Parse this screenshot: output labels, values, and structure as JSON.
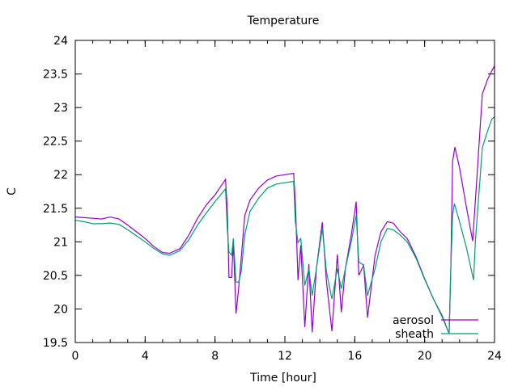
{
  "chart_data": {
    "type": "line",
    "title": "Temperature",
    "xlabel": "Time [hour]",
    "ylabel": "C",
    "xlim": [
      0,
      24
    ],
    "ylim": [
      19.5,
      24
    ],
    "xticks": [
      0,
      4,
      8,
      12,
      16,
      20,
      24
    ],
    "xtick_labels": [
      "0",
      "4",
      "8",
      "12",
      "16",
      "20",
      "24"
    ],
    "yticks": [
      19.5,
      20,
      20.5,
      21,
      21.5,
      22,
      22.5,
      23,
      23.5,
      24
    ],
    "ytick_labels": [
      "19.5",
      "20",
      "20.5",
      "21",
      "21.5",
      "22",
      "22.5",
      "23",
      "23.5",
      "24"
    ],
    "legend_position": "bottom-right",
    "series": [
      {
        "name": "aerosol",
        "color": "#9400d3",
        "points": [
          [
            0,
            21.37
          ],
          [
            0.5,
            21.36
          ],
          [
            1,
            21.35
          ],
          [
            1.5,
            21.34
          ],
          [
            2,
            21.37
          ],
          [
            2.5,
            21.34
          ],
          [
            3,
            21.25
          ],
          [
            3.5,
            21.15
          ],
          [
            4,
            21.05
          ],
          [
            4.5,
            20.93
          ],
          [
            5,
            20.84
          ],
          [
            5.4,
            20.83
          ],
          [
            6,
            20.9
          ],
          [
            6.5,
            21.1
          ],
          [
            7,
            21.35
          ],
          [
            7.5,
            21.55
          ],
          [
            8,
            21.7
          ],
          [
            8.6,
            21.93
          ],
          [
            8.7,
            21.5
          ],
          [
            8.8,
            20.47
          ],
          [
            8.95,
            20.47
          ],
          [
            9.05,
            21.0
          ],
          [
            9.2,
            19.93
          ],
          [
            9.35,
            20.3
          ],
          [
            9.5,
            20.75
          ],
          [
            9.7,
            21.39
          ],
          [
            10,
            21.62
          ],
          [
            10.5,
            21.8
          ],
          [
            11,
            21.92
          ],
          [
            11.5,
            21.98
          ],
          [
            12,
            22.0
          ],
          [
            12.5,
            22.02
          ],
          [
            12.6,
            21.6
          ],
          [
            12.75,
            20.43
          ],
          [
            12.91,
            20.95
          ],
          [
            13.14,
            19.73
          ],
          [
            13.37,
            20.67
          ],
          [
            13.56,
            19.65
          ],
          [
            13.8,
            20.6
          ],
          [
            14.14,
            21.29
          ],
          [
            14.38,
            20.4
          ],
          [
            14.69,
            19.67
          ],
          [
            15.0,
            20.81
          ],
          [
            15.23,
            19.95
          ],
          [
            15.46,
            20.6
          ],
          [
            15.8,
            21.1
          ],
          [
            16.08,
            21.6
          ],
          [
            16.23,
            20.5
          ],
          [
            16.51,
            20.65
          ],
          [
            16.73,
            19.87
          ],
          [
            17.16,
            20.8
          ],
          [
            17.5,
            21.15
          ],
          [
            17.86,
            21.3
          ],
          [
            18.2,
            21.28
          ],
          [
            18.6,
            21.15
          ],
          [
            19,
            21.05
          ],
          [
            19.5,
            20.78
          ],
          [
            20,
            20.45
          ],
          [
            20.5,
            20.15
          ],
          [
            21,
            19.9
          ],
          [
            21.4,
            19.63
          ],
          [
            21.5,
            20.6
          ],
          [
            21.6,
            22.2
          ],
          [
            21.73,
            22.41
          ],
          [
            22,
            22.1
          ],
          [
            22.4,
            21.5
          ],
          [
            22.75,
            21.01
          ],
          [
            23.0,
            21.99
          ],
          [
            23.3,
            23.2
          ],
          [
            23.6,
            23.42
          ],
          [
            23.85,
            23.55
          ],
          [
            24,
            23.62
          ]
        ]
      },
      {
        "name": "sheath",
        "color": "#009e73",
        "points": [
          [
            0,
            21.32
          ],
          [
            0.5,
            21.3
          ],
          [
            1,
            21.27
          ],
          [
            1.5,
            21.27
          ],
          [
            2,
            21.28
          ],
          [
            2.5,
            21.26
          ],
          [
            3,
            21.18
          ],
          [
            3.5,
            21.09
          ],
          [
            4,
            21.0
          ],
          [
            4.5,
            20.9
          ],
          [
            5,
            20.82
          ],
          [
            5.4,
            20.8
          ],
          [
            6,
            20.87
          ],
          [
            6.5,
            21.03
          ],
          [
            7,
            21.25
          ],
          [
            7.5,
            21.43
          ],
          [
            8,
            21.6
          ],
          [
            8.6,
            21.79
          ],
          [
            8.7,
            21.2
          ],
          [
            8.8,
            20.85
          ],
          [
            8.95,
            20.8
          ],
          [
            9.05,
            21.05
          ],
          [
            9.2,
            20.4
          ],
          [
            9.35,
            20.4
          ],
          [
            9.5,
            20.55
          ],
          [
            9.7,
            21.1
          ],
          [
            10,
            21.45
          ],
          [
            10.5,
            21.65
          ],
          [
            11,
            21.8
          ],
          [
            11.5,
            21.86
          ],
          [
            12,
            21.88
          ],
          [
            12.5,
            21.9
          ],
          [
            12.6,
            21.3
          ],
          [
            12.75,
            20.99
          ],
          [
            12.91,
            21.05
          ],
          [
            13.14,
            20.35
          ],
          [
            13.37,
            20.6
          ],
          [
            13.56,
            20.2
          ],
          [
            13.8,
            20.6
          ],
          [
            14.14,
            21.2
          ],
          [
            14.38,
            20.55
          ],
          [
            14.69,
            20.15
          ],
          [
            15.0,
            20.6
          ],
          [
            15.23,
            20.3
          ],
          [
            15.46,
            20.6
          ],
          [
            15.8,
            21.0
          ],
          [
            16.08,
            21.4
          ],
          [
            16.23,
            20.7
          ],
          [
            16.51,
            20.65
          ],
          [
            16.73,
            20.2
          ],
          [
            17.16,
            20.6
          ],
          [
            17.5,
            21.0
          ],
          [
            17.86,
            21.2
          ],
          [
            18.2,
            21.18
          ],
          [
            18.6,
            21.1
          ],
          [
            19,
            21.0
          ],
          [
            19.5,
            20.76
          ],
          [
            20,
            20.44
          ],
          [
            20.5,
            20.15
          ],
          [
            21,
            19.88
          ],
          [
            21.4,
            19.63
          ],
          [
            21.5,
            20.6
          ],
          [
            21.6,
            21.4
          ],
          [
            21.7,
            21.57
          ],
          [
            22,
            21.3
          ],
          [
            22.4,
            20.9
          ],
          [
            22.8,
            20.43
          ],
          [
            22.9,
            21.0
          ],
          [
            23.3,
            22.4
          ],
          [
            23.6,
            22.65
          ],
          [
            23.85,
            22.83
          ],
          [
            24,
            22.86
          ]
        ]
      }
    ]
  }
}
